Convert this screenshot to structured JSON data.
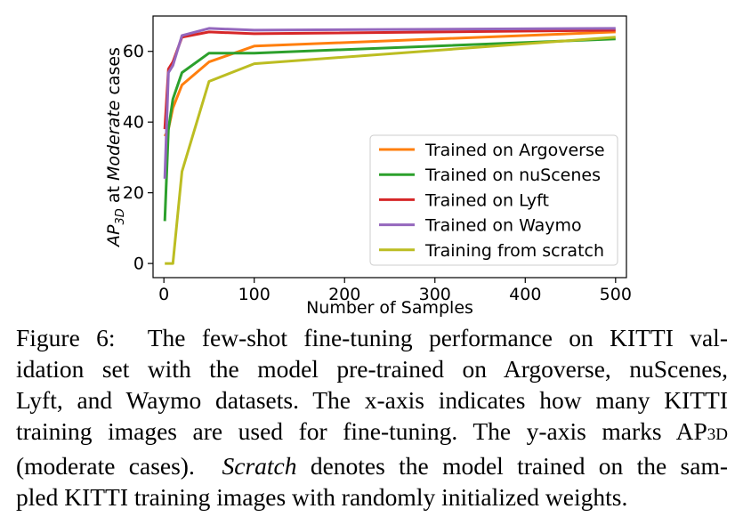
{
  "chart_data": {
    "type": "line",
    "xlabel": "Number of Samples",
    "ylabel_prefix": "AP",
    "ylabel_sub": "3D",
    "ylabel_mid": " at ",
    "ylabel_italic": "Moderate",
    "ylabel_suffix": " cases",
    "xlim": [
      -12,
      512
    ],
    "ylim": [
      -4,
      70
    ],
    "xticks": [
      0,
      100,
      200,
      300,
      400,
      500
    ],
    "yticks": [
      0,
      20,
      40,
      60
    ],
    "xtick_labels": [
      "0",
      "100",
      "200",
      "300",
      "400",
      "500"
    ],
    "ytick_labels": [
      "0",
      "20",
      "40",
      "60"
    ],
    "grid": false,
    "legend_position": "lower-right",
    "series": [
      {
        "name": "Trained on Argoverse",
        "color": "#ff7f0e",
        "x": [
          1,
          5,
          10,
          20,
          50,
          100,
          500
        ],
        "y": [
          36,
          38,
          44,
          50.5,
          57,
          61.5,
          65.5
        ]
      },
      {
        "name": "Trained on nuScenes",
        "color": "#2ca02c",
        "x": [
          1,
          5,
          10,
          20,
          50,
          100,
          500
        ],
        "y": [
          12,
          38,
          46.5,
          54,
          59.5,
          59.5,
          63.5
        ]
      },
      {
        "name": "Trained on Lyft",
        "color": "#d62728",
        "x": [
          1,
          5,
          10,
          20,
          50,
          100,
          500
        ],
        "y": [
          38,
          55,
          57,
          64,
          65.5,
          65,
          66
        ]
      },
      {
        "name": "Trained on Waymo",
        "color": "#9467bd",
        "x": [
          1,
          5,
          10,
          20,
          50,
          100,
          500
        ],
        "y": [
          24,
          54,
          56,
          64.5,
          66.5,
          66,
          66.5
        ]
      },
      {
        "name": "Training from scratch",
        "color": "#bcbd22",
        "x": [
          1,
          5,
          10,
          20,
          50,
          100,
          500
        ],
        "y": [
          0,
          0,
          0,
          26,
          51.5,
          56.5,
          64
        ]
      }
    ]
  },
  "caption": {
    "line1_label": "Figure 6:",
    "line1_text": "The few-shot fine-tuning performance on KITTI val-",
    "line2": "idation set with the model pre-trained on Argoverse, nuScenes,",
    "line3": "Lyft, and Waymo datasets. The x-axis indicates how many KITTI",
    "line4_pre": "training images are used for fine-tuning. The y-axis marks AP",
    "line4_sub": "3D",
    "line5_pre": "(moderate cases).",
    "line5_italic": "Scratch",
    "line5_post": "denotes the model trained on the sam-",
    "line6": "pled KITTI training images with randomly initialized weights."
  }
}
